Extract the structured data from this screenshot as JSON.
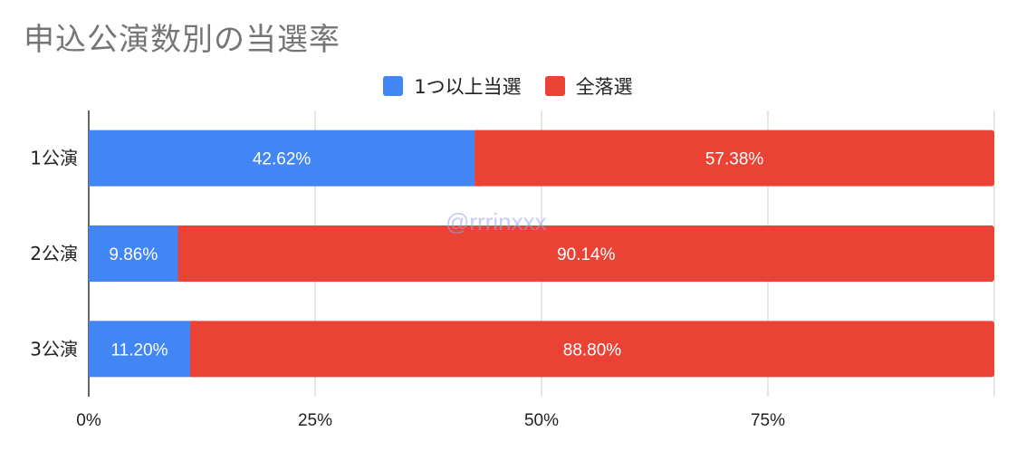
{
  "title": "申込公演数別の当選率",
  "watermark": "@rrrinxxx",
  "chart_data": {
    "type": "bar",
    "orientation": "horizontal",
    "stacked": true,
    "title": "申込公演数別の当選率",
    "categories": [
      "1公演",
      "2公演",
      "3公演"
    ],
    "series": [
      {
        "name": "1つ以上当選",
        "color": "#4285f4",
        "values": [
          42.62,
          9.86,
          11.2
        ],
        "labels": [
          "42.62%",
          "9.86%",
          "11.20%"
        ]
      },
      {
        "name": "全落選",
        "color": "#ea4335",
        "values": [
          57.38,
          90.14,
          88.8
        ],
        "labels": [
          "57.38%",
          "90.14%",
          "88.80%"
        ]
      }
    ],
    "xlim": [
      0,
      100
    ],
    "x_ticks": [
      "0%",
      "25%",
      "50%",
      "75%"
    ],
    "grid": true,
    "legend_position": "top"
  }
}
